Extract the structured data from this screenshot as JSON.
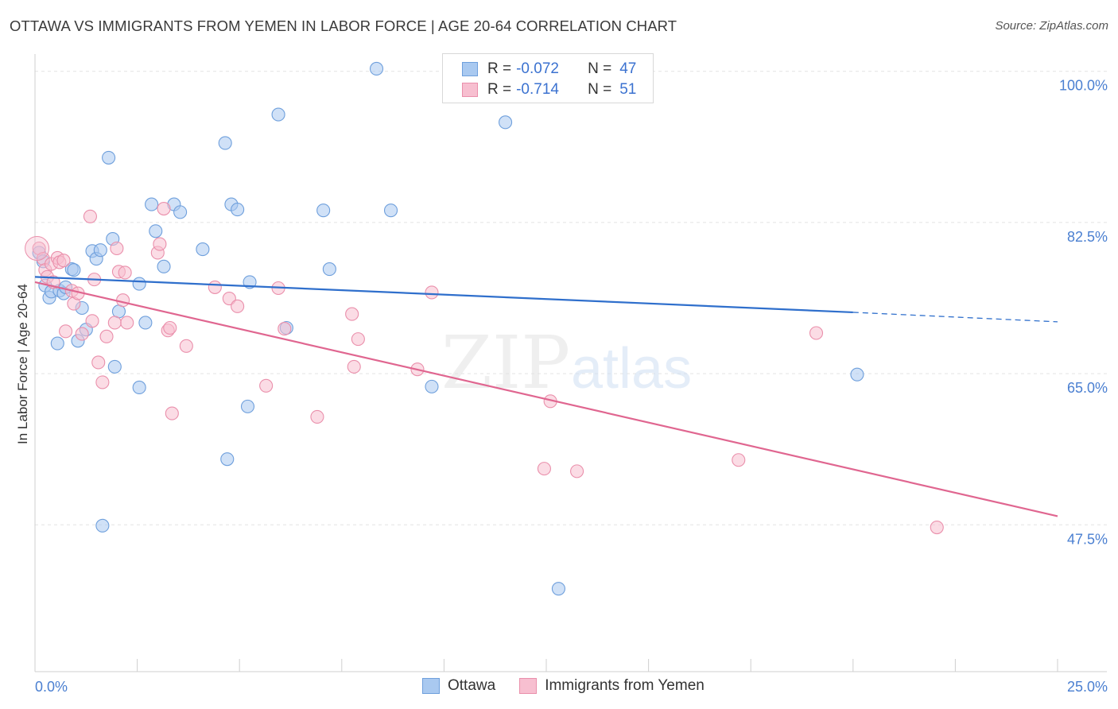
{
  "title": "OTTAWA VS IMMIGRANTS FROM YEMEN IN LABOR FORCE | AGE 20-64 CORRELATION CHART",
  "source": "Source: ZipAtlas.com",
  "watermark": {
    "zip": "ZIP",
    "atlas": "atlas"
  },
  "colors": {
    "ottawa_fill": "#a9c9f0",
    "ottawa_stroke": "#6e9fdc",
    "ottawa_line": "#2f6fcc",
    "yemen_fill": "#f7bfd0",
    "yemen_stroke": "#ea8fab",
    "yemen_line": "#e06690",
    "axis_text": "#4a7fd1",
    "grid": "#e3e3e3"
  },
  "legend": {
    "rows": [
      {
        "r_label": "R =",
        "r_value": "-0.072",
        "n_label": "N =",
        "n_value": "47"
      },
      {
        "r_label": "R =",
        "r_value": "-0.714",
        "n_label": "N =",
        "n_value": "51"
      }
    ]
  },
  "bottom_legend": {
    "items": [
      {
        "label": "Ottawa"
      },
      {
        "label": "Immigrants from Yemen"
      }
    ]
  },
  "chart_data": {
    "type": "scatter",
    "title": "OTTAWA VS IMMIGRANTS FROM YEMEN IN LABOR FORCE | AGE 20-64 CORRELATION CHART",
    "xlabel": "",
    "ylabel": "In Labor Force | Age 20-64",
    "xlim": [
      0,
      25
    ],
    "ylim": [
      30.5,
      102
    ],
    "x_tick_labels": [
      {
        "value": 0,
        "label": "0.0%"
      },
      {
        "value": 25,
        "label": "25.0%"
      }
    ],
    "y_ticks": [
      {
        "value": 47.5,
        "label": "47.5%"
      },
      {
        "value": 65.0,
        "label": "65.0%"
      },
      {
        "value": 82.5,
        "label": "82.5%"
      },
      {
        "value": 100.0,
        "label": "100.0%"
      }
    ],
    "gridlines": "horizontal dashed",
    "series": [
      {
        "name": "Ottawa",
        "r": -0.072,
        "n": 47,
        "trend": {
          "x1": 0.0,
          "y1": 76.2,
          "x2": 20.0,
          "y2": 72.1,
          "dashed_to_x": 25.0,
          "dashed_to_y": 71.0
        },
        "points": [
          [
            0.1,
            79.0
          ],
          [
            0.2,
            78.0
          ],
          [
            0.25,
            75.2
          ],
          [
            0.35,
            73.8
          ],
          [
            0.4,
            74.5
          ],
          [
            0.55,
            68.5
          ],
          [
            0.6,
            74.6
          ],
          [
            0.7,
            74.3
          ],
          [
            0.75,
            75.0
          ],
          [
            0.9,
            77.1
          ],
          [
            0.95,
            77.0
          ],
          [
            1.05,
            68.8
          ],
          [
            1.15,
            72.6
          ],
          [
            1.25,
            70.1
          ],
          [
            1.4,
            79.2
          ],
          [
            1.5,
            78.3
          ],
          [
            1.6,
            79.3
          ],
          [
            1.8,
            90.0
          ],
          [
            1.9,
            80.6
          ],
          [
            1.95,
            65.8
          ],
          [
            2.05,
            72.2
          ],
          [
            2.55,
            63.4
          ],
          [
            2.55,
            75.4
          ],
          [
            2.7,
            70.9
          ],
          [
            2.85,
            84.6
          ],
          [
            2.95,
            81.5
          ],
          [
            3.15,
            77.4
          ],
          [
            3.4,
            84.6
          ],
          [
            3.55,
            83.7
          ],
          [
            4.1,
            79.4
          ],
          [
            4.65,
            91.7
          ],
          [
            4.7,
            55.1
          ],
          [
            4.8,
            84.6
          ],
          [
            4.95,
            84.0
          ],
          [
            5.2,
            61.2
          ],
          [
            5.25,
            75.6
          ],
          [
            5.95,
            95.0
          ],
          [
            6.15,
            70.3
          ],
          [
            7.05,
            83.9
          ],
          [
            7.2,
            77.1
          ],
          [
            8.35,
            100.3
          ],
          [
            8.7,
            83.9
          ],
          [
            9.7,
            63.5
          ],
          [
            11.5,
            94.1
          ],
          [
            12.8,
            40.1
          ],
          [
            20.1,
            64.9
          ],
          [
            1.65,
            47.4
          ]
        ]
      },
      {
        "name": "Immigrants from Yemen",
        "r": -0.714,
        "n": 51,
        "trend": {
          "x1": 0.0,
          "y1": 75.6,
          "x2": 25.0,
          "y2": 48.5
        },
        "points": [
          [
            0.1,
            79.5
          ],
          [
            0.2,
            78.3
          ],
          [
            0.25,
            77.0
          ],
          [
            0.3,
            76.2
          ],
          [
            0.4,
            77.7
          ],
          [
            0.45,
            75.6
          ],
          [
            0.55,
            78.4
          ],
          [
            0.6,
            77.9
          ],
          [
            0.7,
            78.1
          ],
          [
            0.75,
            69.9
          ],
          [
            0.9,
            74.6
          ],
          [
            0.95,
            73.1
          ],
          [
            1.05,
            74.3
          ],
          [
            1.15,
            69.6
          ],
          [
            1.35,
            83.2
          ],
          [
            1.4,
            71.1
          ],
          [
            1.45,
            75.9
          ],
          [
            1.55,
            66.3
          ],
          [
            1.65,
            64.0
          ],
          [
            1.75,
            69.3
          ],
          [
            1.95,
            70.9
          ],
          [
            2.0,
            79.5
          ],
          [
            2.05,
            76.8
          ],
          [
            2.15,
            73.5
          ],
          [
            2.2,
            76.7
          ],
          [
            2.25,
            70.9
          ],
          [
            3.0,
            79.0
          ],
          [
            3.05,
            80.0
          ],
          [
            3.15,
            84.1
          ],
          [
            3.25,
            70.0
          ],
          [
            3.3,
            70.3
          ],
          [
            3.35,
            60.4
          ],
          [
            3.7,
            68.2
          ],
          [
            4.4,
            75.0
          ],
          [
            4.75,
            73.7
          ],
          [
            4.95,
            72.8
          ],
          [
            5.65,
            63.6
          ],
          [
            5.95,
            74.9
          ],
          [
            6.1,
            70.2
          ],
          [
            6.9,
            60.0
          ],
          [
            7.75,
            71.9
          ],
          [
            7.8,
            65.8
          ],
          [
            7.9,
            69.0
          ],
          [
            9.35,
            65.5
          ],
          [
            9.7,
            74.4
          ],
          [
            12.45,
            54.0
          ],
          [
            12.6,
            61.8
          ],
          [
            13.25,
            53.7
          ],
          [
            17.2,
            55.0
          ],
          [
            19.1,
            69.7
          ],
          [
            22.05,
            47.2
          ]
        ]
      }
    ]
  }
}
